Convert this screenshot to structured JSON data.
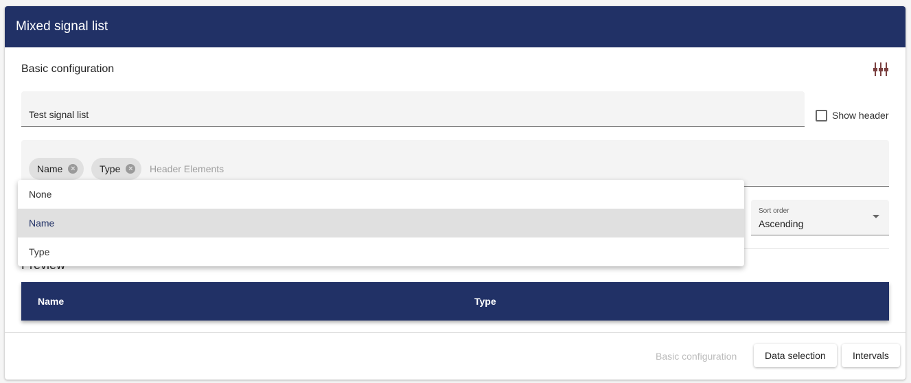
{
  "title": "Mixed signal list",
  "section": "Basic configuration",
  "settings_icon": "equalizer-icon",
  "list_name": "Test signal list",
  "show_header": {
    "label": "Show header",
    "checked": false
  },
  "header_elements": {
    "chips": [
      "Name",
      "Type"
    ],
    "placeholder": "Header Elements"
  },
  "dropdown": {
    "options": [
      "None",
      "Name",
      "Type"
    ],
    "highlighted": "Name"
  },
  "sort_order": {
    "label": "Sort order",
    "value": "Ascending"
  },
  "preview": {
    "title": "Preview",
    "columns": [
      "Name",
      "Type"
    ]
  },
  "footer": {
    "basic": "Basic configuration",
    "data": "Data selection",
    "intervals": "Intervals"
  },
  "colors": {
    "primary": "#213166"
  }
}
